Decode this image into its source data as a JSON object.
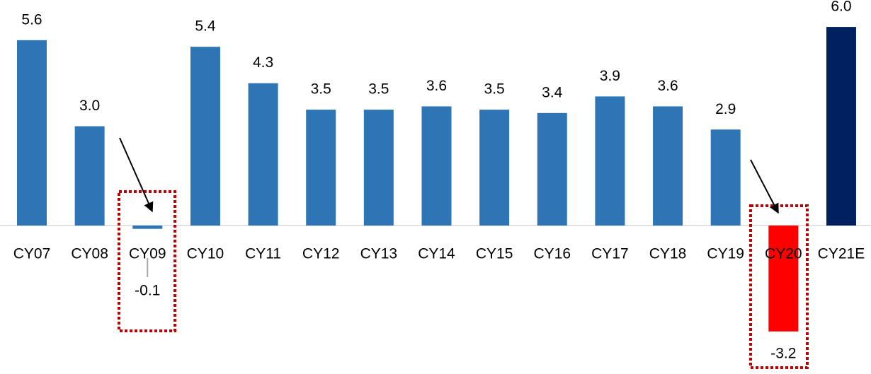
{
  "chart_data": {
    "type": "bar",
    "categories": [
      "CY07",
      "CY08",
      "CY09",
      "CY10",
      "CY11",
      "CY12",
      "CY13",
      "CY14",
      "CY15",
      "CY16",
      "CY17",
      "CY18",
      "CY19",
      "CY20",
      "CY21E"
    ],
    "values": [
      5.6,
      3.0,
      -0.1,
      5.4,
      4.3,
      3.5,
      3.5,
      3.6,
      3.5,
      3.4,
      3.9,
      3.6,
      2.9,
      -3.2,
      6.0
    ],
    "value_labels": [
      "5.6",
      "3.0",
      "-0.1",
      "5.4",
      "4.3",
      "3.5",
      "3.5",
      "3.6",
      "3.5",
      "3.4",
      "3.9",
      "3.6",
      "2.9",
      "-3.2",
      "6.0"
    ],
    "colors": [
      "#2e75b6",
      "#2e75b6",
      "#2e75b6",
      "#2e75b6",
      "#2e75b6",
      "#2e75b6",
      "#2e75b6",
      "#2e75b6",
      "#2e75b6",
      "#2e75b6",
      "#2e75b6",
      "#2e75b6",
      "#2e75b6",
      "#ff0000",
      "#002060"
    ],
    "ylim": [
      -4.4,
      6.6
    ],
    "grid": false
  }
}
